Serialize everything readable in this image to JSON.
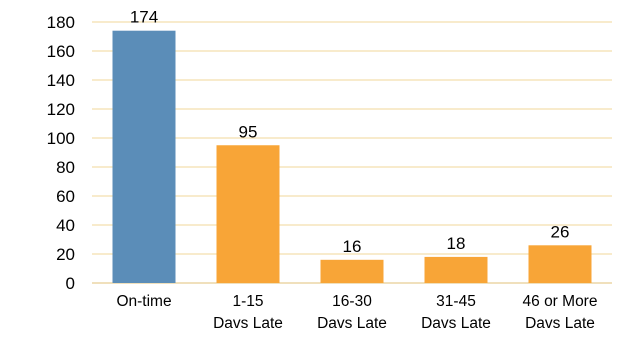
{
  "chart_data": {
    "type": "bar",
    "categories": [
      [
        "On-time"
      ],
      [
        "1-15",
        "Davs Late"
      ],
      [
        "16-30",
        "Davs Late"
      ],
      [
        "31-45",
        "Davs Late"
      ],
      [
        "46 or More",
        "Davs Late"
      ]
    ],
    "values": [
      174,
      95,
      16,
      18,
      26
    ],
    "ylim": [
      0,
      180
    ],
    "yticks": [
      0,
      20,
      40,
      60,
      80,
      100,
      120,
      140,
      160,
      180
    ],
    "grid": true,
    "colors": [
      "#5B8DB8",
      "#F8A537",
      "#F8A537",
      "#F8A537",
      "#F8A537"
    ],
    "title": "",
    "xlabel": "",
    "ylabel": ""
  }
}
